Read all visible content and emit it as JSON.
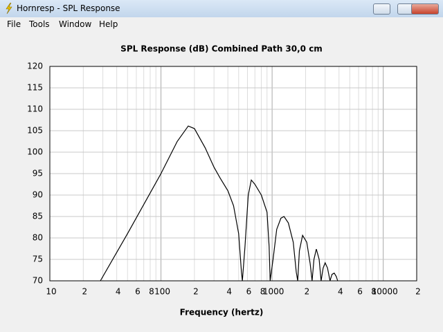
{
  "window": {
    "title": "Hornresp - SPL Response"
  },
  "menu": [
    "File",
    "Tools",
    "Window",
    "Help"
  ],
  "chart_data": {
    "type": "line",
    "title": "SPL Response (dB)   Combined   Path 30,0 cm",
    "x_label": "Frequency (hertz)",
    "xscale": "log",
    "xlim": [
      10,
      20000
    ],
    "ylim": [
      70,
      120
    ],
    "xticks": [
      10,
      {
        "value": 20,
        "label": "2"
      },
      {
        "value": 40,
        "label": "4"
      },
      {
        "value": 60,
        "label": "6"
      },
      {
        "value": 80,
        "label": "8"
      },
      100,
      {
        "value": 200,
        "label": "2"
      },
      {
        "value": 400,
        "label": "4"
      },
      {
        "value": 600,
        "label": "6"
      },
      {
        "value": 800,
        "label": "8"
      },
      1000,
      {
        "value": 2000,
        "label": "2"
      },
      {
        "value": 4000,
        "label": "4"
      },
      {
        "value": 6000,
        "label": "6"
      },
      {
        "value": 8000,
        "label": "8"
      },
      10000,
      {
        "value": 20000,
        "label": "2"
      }
    ],
    "xminor": [
      30,
      50,
      70,
      90,
      300,
      500,
      700,
      900,
      3000,
      5000,
      7000,
      9000
    ],
    "yticks": [
      70,
      75,
      80,
      85,
      90,
      95,
      100,
      105,
      110,
      115,
      120
    ],
    "grid": true,
    "series": [
      {
        "name": "SPL",
        "color": "#000000",
        "x": [
          28.5,
          50,
          100,
          140,
          176,
          200,
          250,
          300,
          340,
          400,
          450,
          500,
          530,
          540,
          570,
          610,
          650,
          700,
          800,
          900,
          940,
          960,
          1020,
          1100,
          1200,
          1280,
          1400,
          1550,
          1650,
          1700,
          1760,
          1880,
          2050,
          2200,
          2290,
          2380,
          2500,
          2650,
          2760,
          2880,
          3000,
          3150,
          3320,
          3460,
          3620,
          3780,
          3890
        ],
        "values": [
          70,
          81,
          95,
          102.5,
          106.1,
          105.5,
          101,
          96.5,
          94,
          91,
          87.5,
          81,
          72,
          70,
          78,
          90,
          93.5,
          92.5,
          90,
          86,
          78,
          70,
          75,
          82,
          84.6,
          85,
          83.5,
          79,
          72,
          70,
          77,
          80.6,
          79,
          74,
          70,
          75,
          77.4,
          75,
          70,
          73,
          74.2,
          73,
          70,
          71.5,
          71.8,
          71,
          70
        ]
      }
    ]
  }
}
